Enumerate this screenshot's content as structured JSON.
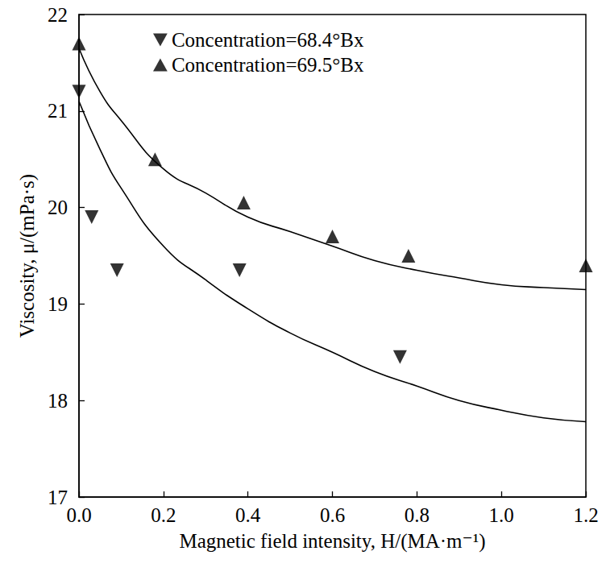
{
  "chart_data": {
    "type": "scatter",
    "x_label": "Magnetic field intensity, H/(MA·m⁻¹)",
    "y_label": "Viscosity, μ/(mPa·s)",
    "xlim": [
      0,
      1.2
    ],
    "xticks": [
      {
        "value": 0,
        "label": "0.0"
      },
      0.2,
      0.4,
      0.6,
      0.8,
      {
        "value": 1,
        "label": "1.0"
      },
      1.2
    ],
    "ylim": [
      17,
      22
    ],
    "yticks": [
      17,
      18,
      19,
      20,
      21,
      22
    ],
    "grid": false,
    "legend": "upper right",
    "series": [
      {
        "name": "Concentration=68.4°Bx",
        "type": "scatter",
        "marker": "triangle-down",
        "color": "#000000",
        "x": [
          0,
          0.03,
          0.09,
          0.38,
          0.76
        ],
        "values": [
          21.2,
          19.9,
          19.35,
          19.35,
          18.45
        ]
      },
      {
        "name": "Concentration=69.5°Bx",
        "type": "scatter",
        "marker": "triangle-up",
        "color": "#000000",
        "x": [
          0,
          0.18,
          0.39,
          0.6,
          0.78,
          1.2
        ],
        "values": [
          21.7,
          20.5,
          20.05,
          19.7,
          19.5,
          19.4
        ]
      },
      {
        "type": "line",
        "line_style": "solid",
        "color": "#000000",
        "x": [
          0,
          0.05,
          0.1,
          0.2,
          0.3,
          0.4,
          0.5,
          0.6,
          0.7,
          0.8,
          0.9,
          1.0,
          1.1,
          1.2
        ],
        "values": [
          21.1,
          20.6,
          20.2,
          19.6,
          19.25,
          18.95,
          18.7,
          18.5,
          18.3,
          18.15,
          18.0,
          17.9,
          17.82,
          17.78
        ]
      },
      {
        "type": "line",
        "line_style": "solid",
        "color": "#000000",
        "x": [
          0,
          0.05,
          0.1,
          0.2,
          0.3,
          0.4,
          0.5,
          0.6,
          0.7,
          0.8,
          0.9,
          1.0,
          1.1,
          1.2
        ],
        "values": [
          21.65,
          21.2,
          20.9,
          20.4,
          20.15,
          19.9,
          19.75,
          19.6,
          19.45,
          19.35,
          19.27,
          19.2,
          19.17,
          19.15
        ]
      }
    ]
  }
}
